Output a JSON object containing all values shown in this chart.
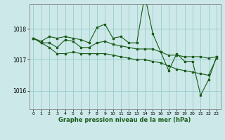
{
  "title": "Graphe pression niveau de la mer (hPa)",
  "background_color": "#cce8e8",
  "grid_color": "#99cccc",
  "line_color": "#1a5c1a",
  "xlim": [
    -0.5,
    23.5
  ],
  "ylim": [
    1015.4,
    1018.8
  ],
  "yticks": [
    1016,
    1017,
    1018
  ],
  "xticks": [
    0,
    1,
    2,
    3,
    4,
    5,
    6,
    7,
    8,
    9,
    10,
    11,
    12,
    13,
    14,
    15,
    16,
    17,
    18,
    19,
    20,
    21,
    22,
    23
  ],
  "series": [
    [
      1017.7,
      1017.6,
      1017.75,
      1017.7,
      1017.75,
      1017.7,
      1017.65,
      1017.55,
      1018.05,
      1018.15,
      1017.7,
      1017.75,
      1017.55,
      1017.55,
      1019.1,
      1017.85,
      1017.25,
      1016.65,
      1017.2,
      1016.95,
      1016.95,
      1015.85,
      1016.35,
      1017.1
    ],
    [
      1017.7,
      1017.55,
      1017.55,
      1017.4,
      1017.65,
      1017.6,
      1017.4,
      1017.4,
      1017.55,
      1017.6,
      1017.5,
      1017.45,
      1017.4,
      1017.35,
      1017.35,
      1017.35,
      1017.25,
      1017.15,
      1017.15,
      1017.1,
      1017.1,
      1017.1,
      1017.05,
      1017.1
    ],
    [
      1017.7,
      1017.55,
      1017.4,
      1017.2,
      1017.2,
      1017.25,
      1017.2,
      1017.2,
      1017.2,
      1017.2,
      1017.15,
      1017.1,
      1017.05,
      1017.0,
      1017.0,
      1016.95,
      1016.9,
      1016.8,
      1016.7,
      1016.65,
      1016.6,
      1016.55,
      1016.5,
      1017.05
    ]
  ]
}
